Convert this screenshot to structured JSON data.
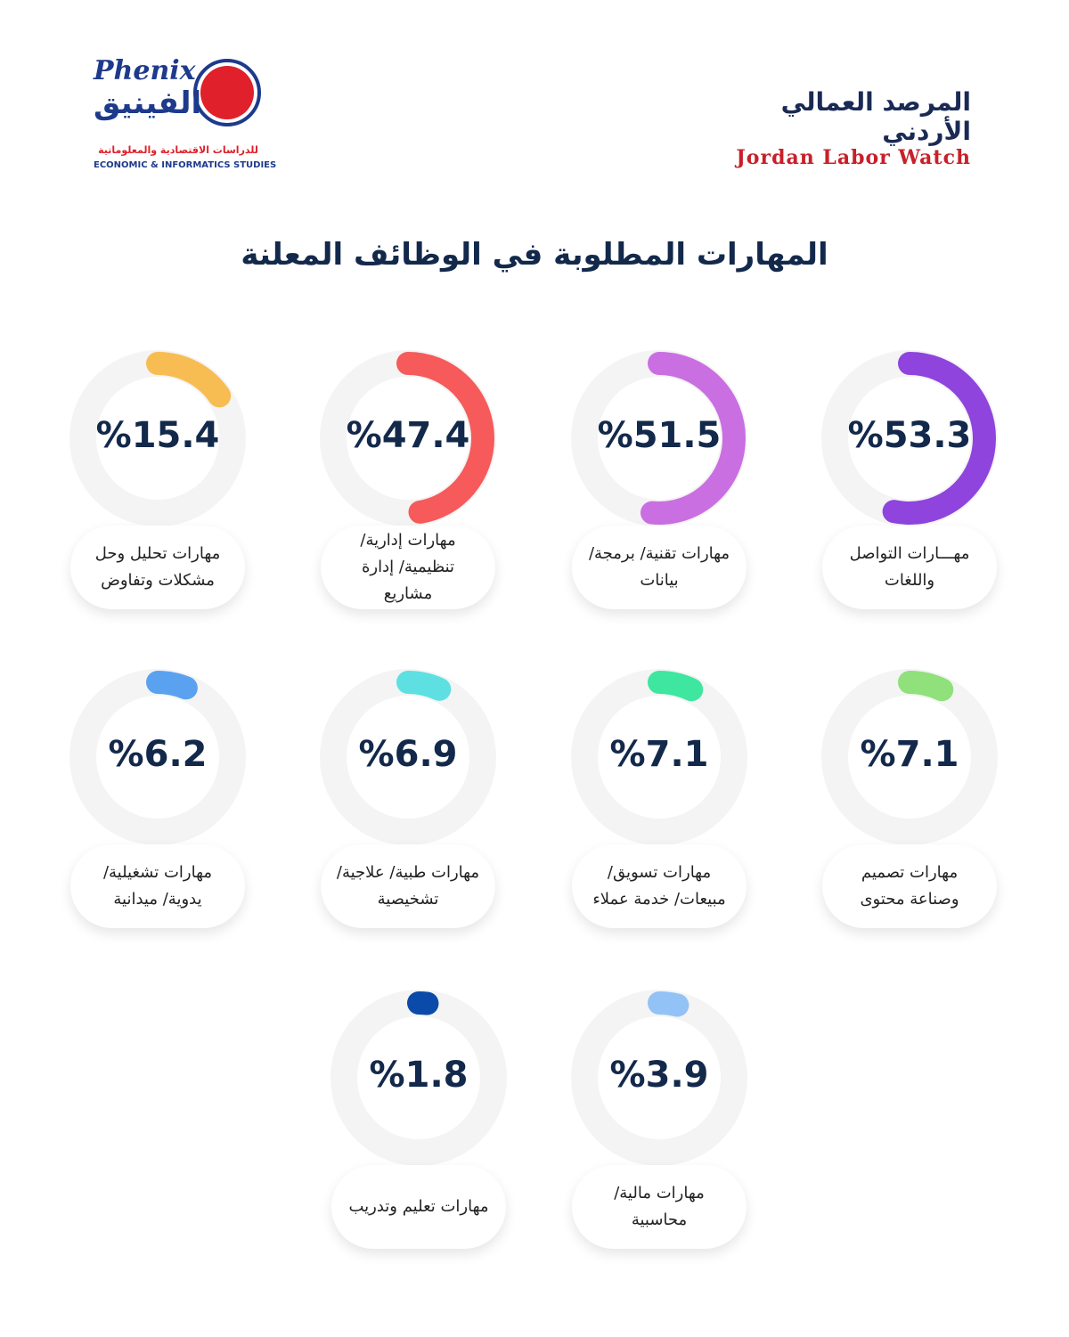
{
  "header": {
    "left_logo": {
      "latin": "Phenix",
      "arabic": "الفينيق",
      "sub_arabic": "للدراسات الاقتصادية والمعلوماتية",
      "sub_latin": "ECONOMIC & INFORMATICS STUDIES"
    },
    "right_logo": {
      "arabic": "المرصد العمالي الأردني",
      "latin": "Jordan Labor Watch"
    }
  },
  "chart_data": {
    "type": "radial",
    "title": "المهارات المطلوبة في الوظائف المعلنة",
    "ylim": [
      0,
      100
    ],
    "categories": [
      "مهـــارات التواصل واللغات",
      "مهارات تقنية/ برمجة/ بيانات",
      "مهارات إدارية/ تنظيمية/ إدارة مشاريع",
      "مهارات تحليل وحل مشكلات وتفاوض",
      "مهارات تصميم وصناعة محتوى",
      "مهارات تسويق/ مبيعات/ خدمة عملاء",
      "مهارات طبية/ علاجية/ تشخيصية",
      "مهارات تشغيلية/ يدوية/ ميدانية",
      "مهارات مالية/ محاسبية",
      "مهارات تعليم وتدريب"
    ],
    "values": [
      53.3,
      51.5,
      47.4,
      15.4,
      7.1,
      7.1,
      6.9,
      6.2,
      3.9,
      1.8
    ],
    "value_labels": [
      "%53.3",
      "%51.5",
      "%47.4",
      "%15.4",
      "%7.1",
      "%7.1",
      "%6.9",
      "%6.2",
      "%3.9",
      "%1.8"
    ],
    "colors": [
      "#8e44dd",
      "#c96fe2",
      "#f65a5a",
      "#f8bd52",
      "#90e07c",
      "#3fe6a0",
      "#5ee0e2",
      "#5aa2f0",
      "#93c2f6",
      "#0b4aa8"
    ]
  }
}
